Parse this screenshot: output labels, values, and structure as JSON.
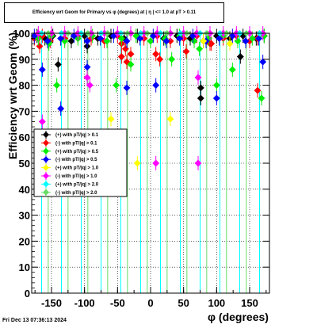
{
  "chart_data": {
    "type": "scatter",
    "title": "Efficiency wrt Geom for Primary vs φ (degrees) at | η | <= 1.0 at pT > 0.11",
    "xlabel": "φ (degrees)",
    "ylabel": "Efficiency wrt Geom (%)",
    "xlim": [
      -180,
      180
    ],
    "ylim": [
      0,
      100
    ],
    "x_ticks": [
      -150,
      -100,
      -50,
      0,
      50,
      100,
      150
    ],
    "y_ticks": [
      0,
      10,
      20,
      30,
      40,
      50,
      60,
      70,
      80,
      90,
      100
    ],
    "grid": true,
    "legend_position": "middle-left",
    "series": [
      {
        "name": "(+) with pT/|q| > 0.1",
        "color": "#000000",
        "x": [
          -172,
          -160,
          -148,
          -136,
          -120,
          -100,
          -80,
          -60,
          -40,
          -20,
          0,
          20,
          40,
          60,
          80,
          100,
          120,
          140,
          160,
          172,
          -140,
          -96,
          76,
          76,
          136
        ],
        "y": [
          99,
          98,
          99,
          98,
          97,
          99,
          98,
          99,
          98,
          99,
          97,
          98,
          99,
          98,
          97,
          99,
          98,
          99,
          98,
          99,
          88,
          95,
          79,
          75,
          91
        ]
      },
      {
        "name": "(-) with pT/|q| > 0.1",
        "color": "#ff0000",
        "x": [
          -176,
          -164,
          -152,
          -130,
          -110,
          -90,
          -70,
          -50,
          -44,
          -38,
          -30,
          -10,
          10,
          30,
          50,
          70,
          90,
          110,
          130,
          150,
          162,
          -168,
          -44,
          -36,
          8,
          14,
          54,
          92,
          162
        ],
        "y": [
          98,
          99,
          97,
          98,
          99,
          98,
          97,
          99,
          96,
          94,
          92,
          98,
          99,
          97,
          98,
          99,
          96,
          98,
          99,
          97,
          98,
          95,
          91,
          89,
          92,
          90,
          93,
          96,
          78
        ]
      },
      {
        "name": "(+) with pT/|q| > 0.5",
        "color": "#00ee00",
        "x": [
          -170,
          -150,
          -130,
          -110,
          -88,
          -66,
          -44,
          -22,
          0,
          22,
          44,
          66,
          88,
          110,
          132,
          154,
          172,
          -154,
          -142,
          -52,
          -30,
          32,
          74,
          100,
          124,
          168
        ],
        "y": [
          98,
          99,
          97,
          98,
          99,
          97,
          98,
          99,
          97,
          98,
          99,
          97,
          98,
          99,
          97,
          98,
          99,
          96,
          80,
          80,
          88,
          90,
          94,
          80,
          86,
          75
        ]
      },
      {
        "name": "(-) with pT/|q| > 0.5",
        "color": "#0000ff",
        "x": [
          -176,
          -156,
          -136,
          -116,
          -96,
          -76,
          -56,
          -36,
          -16,
          4,
          24,
          44,
          64,
          84,
          104,
          124,
          144,
          164,
          -164,
          -136,
          -96,
          -36,
          8,
          100,
          170
        ],
        "y": [
          99,
          97,
          98,
          99,
          97,
          98,
          99,
          97,
          98,
          99,
          97,
          98,
          99,
          97,
          98,
          99,
          97,
          98,
          86,
          71,
          87,
          79,
          80,
          75,
          89
        ]
      },
      {
        "name": "(+) with pT/|q| > 1.0",
        "color": "#ffff00",
        "x": [
          -60,
          -20,
          30,
          80,
          120
        ],
        "y": [
          67,
          50,
          67,
          97,
          96
        ]
      },
      {
        "name": "(-) with pT/|q| > 1.0",
        "color": "#ff00ff",
        "x": [
          -170,
          -150,
          -130,
          -110,
          -90,
          -70,
          -50,
          -30,
          -10,
          10,
          30,
          50,
          70,
          90,
          110,
          130,
          150,
          170,
          -164,
          -96,
          -92,
          8,
          72,
          72
        ],
        "y": [
          100,
          100,
          100,
          100,
          100,
          100,
          100,
          100,
          100,
          100,
          100,
          100,
          100,
          100,
          100,
          100,
          100,
          100,
          66,
          83,
          80,
          50,
          83,
          50
        ]
      },
      {
        "name": "(+) with pT/|q| > 2.0",
        "color": "#00ffff",
        "x": [
          -165,
          -135,
          -105,
          -75,
          -45,
          -15,
          15,
          45,
          75,
          105,
          135,
          165
        ],
        "y": [
          100,
          100,
          100,
          100,
          100,
          100,
          100,
          100,
          100,
          100,
          100,
          100
        ]
      },
      {
        "name": "(-) with pT/|q| > 2.0",
        "color": "#66dd66",
        "x": [
          -155,
          -125,
          -95,
          -65,
          -35,
          -5,
          25,
          55,
          85,
          115,
          145
        ],
        "y": [
          100,
          100,
          100,
          100,
          100,
          100,
          100,
          100,
          100,
          100,
          100
        ]
      }
    ],
    "timestamp": "Fri Dec 13 07:36:13 2024"
  }
}
